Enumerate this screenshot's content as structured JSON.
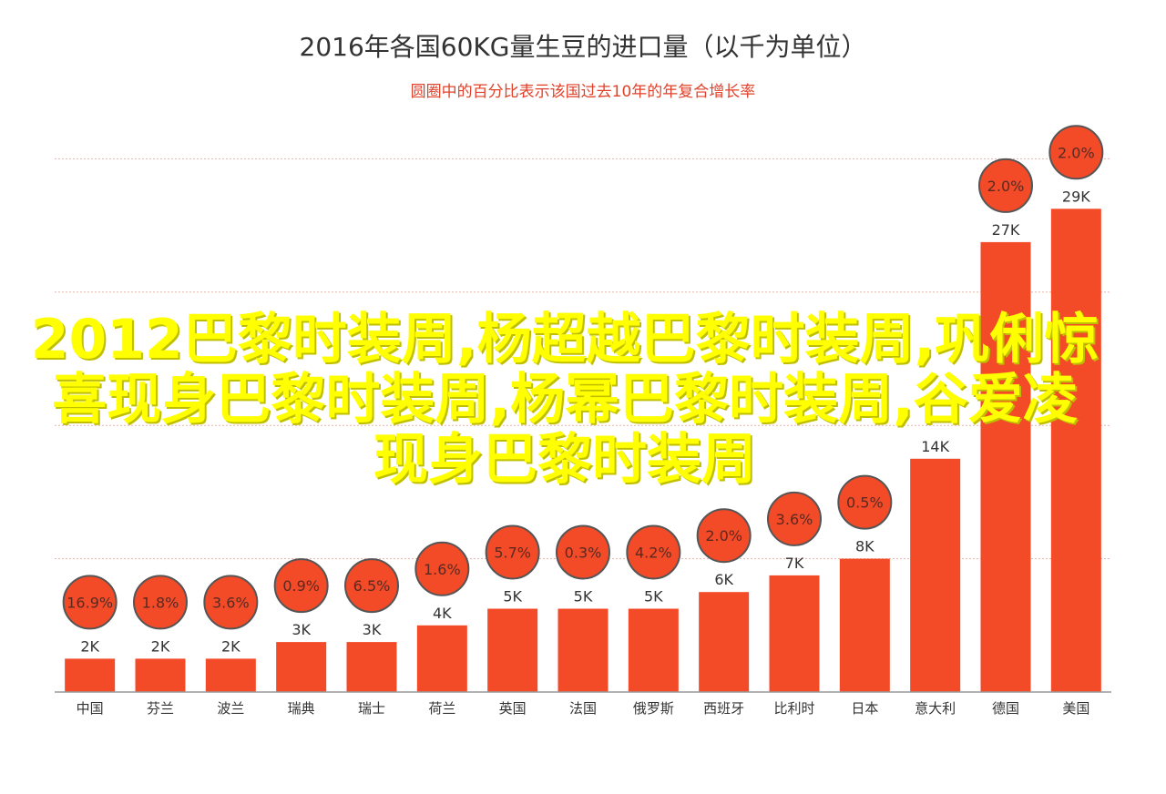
{
  "colors": {
    "bar": "#f34a28",
    "circle_fill": "#f34a28",
    "circle_stroke": "#555555",
    "circle_text": "#5a2a20",
    "grid": "#e8b4a8",
    "axis": "#999999",
    "label_text": "#333333",
    "overlay": "#ffff00"
  },
  "overlay_text": "2012巴黎时装周,杨超越巴黎时装周,巩俐惊喜现身巴黎时装周,杨幂巴黎时装周,谷爱凌现身巴黎时装周",
  "chart_data": {
    "type": "bar",
    "title": "2016年各国60KG量生豆的进口量（以千为单位）",
    "subtitle": "圆圈中的百分比表示该国过去10年的年复合增长率",
    "categories": [
      "中国",
      "芬兰",
      "波兰",
      "瑞典",
      "瑞士",
      "荷兰",
      "英国",
      "法国",
      "俄罗斯",
      "西班牙",
      "比利时",
      "日本",
      "意大利",
      "德国",
      "美国"
    ],
    "values": [
      2,
      2,
      2,
      3,
      3,
      4,
      5,
      5,
      5,
      6,
      7,
      8,
      14,
      27,
      29
    ],
    "value_labels": [
      "2K",
      "2K",
      "2K",
      "3K",
      "3K",
      "4K",
      "5K",
      "5K",
      "5K",
      "6K",
      "7K",
      "8K",
      "14K",
      "27K",
      "29K"
    ],
    "growth_labels": [
      "16.9%",
      "1.8%",
      "3.6%",
      "0.9%",
      "6.5%",
      "1.6%",
      "5.7%",
      "0.3%",
      "4.2%",
      "2.0%",
      "3.6%",
      "0.5%",
      "",
      "2.0%",
      "2.0%"
    ],
    "ylim": [
      0,
      32
    ],
    "grid": true,
    "legend": "none"
  }
}
